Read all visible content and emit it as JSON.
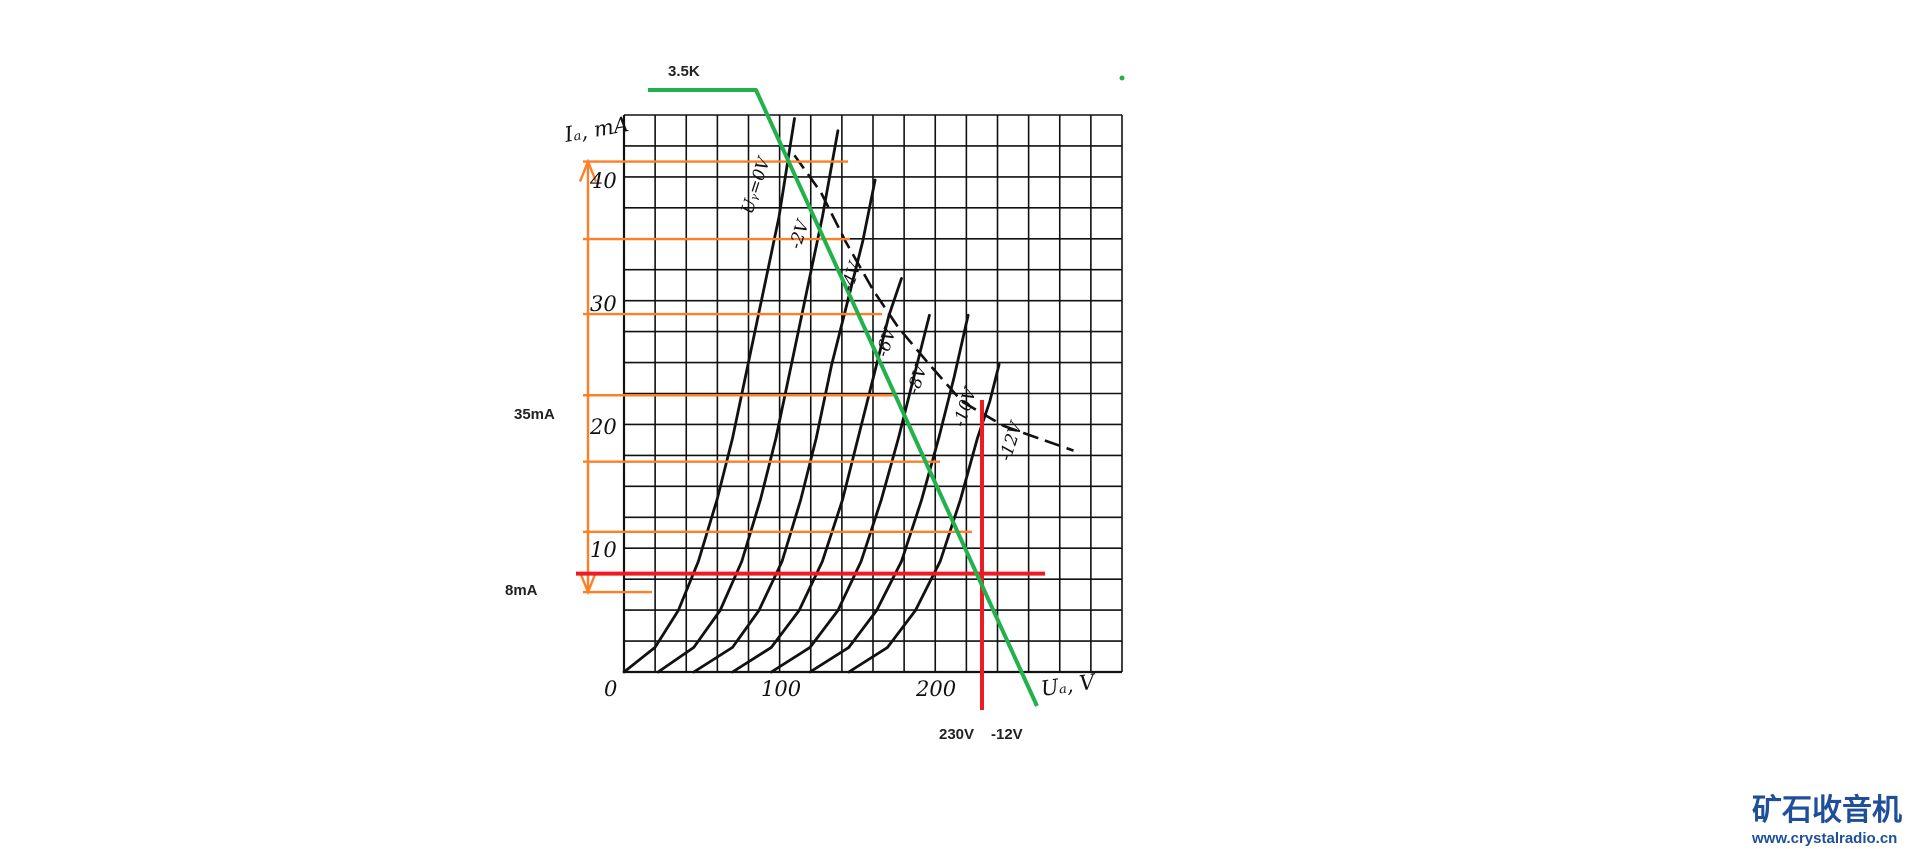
{
  "chart_data": {
    "type": "line",
    "title": "",
    "xlabel": "Uₐ, V",
    "ylabel": "Iₐ, mA",
    "xlim": [
      0,
      320
    ],
    "ylim": [
      0,
      45
    ],
    "grid": true,
    "x_ticks": [
      {
        "value": 0,
        "label": "0"
      },
      {
        "value": 100,
        "label": "100"
      },
      {
        "value": 200,
        "label": "200"
      }
    ],
    "y_ticks": [
      {
        "value": 10,
        "label": "10"
      },
      {
        "value": 20,
        "label": "20"
      },
      {
        "value": 30,
        "label": "30"
      },
      {
        "value": 40,
        "label": "40"
      }
    ],
    "series": [
      {
        "name": "Uᵧ=0V",
        "points": [
          [
            0,
            0
          ],
          [
            20,
            2
          ],
          [
            35,
            5
          ],
          [
            48,
            9
          ],
          [
            60,
            14
          ],
          [
            70,
            19
          ],
          [
            80,
            25
          ],
          [
            90,
            31
          ],
          [
            100,
            37
          ],
          [
            110,
            45
          ]
        ]
      },
      {
        "name": "-2V",
        "points": [
          [
            22,
            0
          ],
          [
            45,
            2
          ],
          [
            62,
            5
          ],
          [
            76,
            9
          ],
          [
            88,
            14
          ],
          [
            98,
            19
          ],
          [
            108,
            25
          ],
          [
            118,
            31
          ],
          [
            128,
            37
          ],
          [
            138,
            44
          ]
        ]
      },
      {
        "name": "-4V",
        "points": [
          [
            45,
            0
          ],
          [
            70,
            2
          ],
          [
            87,
            5
          ],
          [
            102,
            9
          ],
          [
            114,
            14
          ],
          [
            124,
            19
          ],
          [
            134,
            25
          ],
          [
            144,
            30
          ],
          [
            154,
            35
          ],
          [
            162,
            40
          ]
        ]
      },
      {
        "name": "-6V",
        "points": [
          [
            70,
            0
          ],
          [
            95,
            2
          ],
          [
            113,
            5
          ],
          [
            128,
            9
          ],
          [
            141,
            14
          ],
          [
            151,
            19
          ],
          [
            161,
            24
          ],
          [
            171,
            29
          ],
          [
            179,
            32
          ]
        ]
      },
      {
        "name": "-8V",
        "points": [
          [
            95,
            0
          ],
          [
            120,
            2
          ],
          [
            138,
            5
          ],
          [
            153,
            9
          ],
          [
            166,
            14
          ],
          [
            177,
            19
          ],
          [
            187,
            24
          ],
          [
            197,
            29
          ]
        ]
      },
      {
        "name": "-10V",
        "points": [
          [
            120,
            0
          ],
          [
            145,
            2
          ],
          [
            163,
            5
          ],
          [
            179,
            9
          ],
          [
            192,
            14
          ],
          [
            203,
            19
          ],
          [
            213,
            24
          ],
          [
            222,
            29
          ]
        ]
      },
      {
        "name": "-12V",
        "points": [
          [
            145,
            0
          ],
          [
            170,
            2
          ],
          [
            188,
            5
          ],
          [
            204,
            9
          ],
          [
            217,
            14
          ],
          [
            228,
            19
          ],
          [
            236,
            22
          ],
          [
            242,
            25
          ]
        ]
      }
    ],
    "dissipation_curve": [
      [
        110,
        42
      ],
      [
        127,
        39
      ],
      [
        143,
        35
      ],
      [
        161,
        31
      ],
      [
        177,
        28
      ],
      [
        197,
        25
      ],
      [
        218,
        22
      ],
      [
        245,
        20
      ],
      [
        290,
        18
      ]
    ],
    "load_line": {
      "label": "3.5K",
      "points": [
        [
          -60,
          47
        ],
        [
          10,
          47
        ],
        [
          106,
          42
        ],
        [
          263,
          -2
        ]
      ]
    },
    "operating_point": {
      "x_label": "230V",
      "grid_label": "-12V",
      "current_label": "8mA",
      "x": 230,
      "y": 8
    },
    "swing": {
      "label": "35mA",
      "y_top": 41.5,
      "y_bottom": 6.5,
      "levels": [
        41.5,
        35.2,
        29.1,
        22.5,
        17.1,
        11.4,
        6.5
      ]
    },
    "colors": {
      "load_line": "#22b14c",
      "operating_point": "#ed1c24",
      "swing": "#ff7f27",
      "grid": "#111111",
      "curves": "#111111"
    }
  },
  "watermark": {
    "title": "矿石收音机",
    "url": "www.crystalradio.cn"
  }
}
